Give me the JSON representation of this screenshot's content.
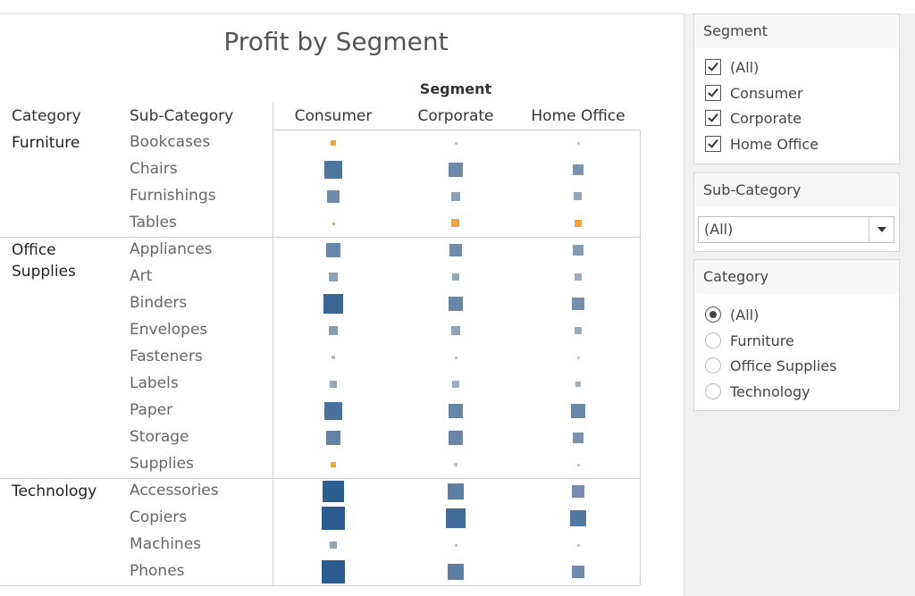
{
  "chart_data": {
    "type": "square-heatmap",
    "title": "Profit by Segment",
    "column_header": "Segment",
    "row_headers": [
      "Category",
      "Sub-Category"
    ],
    "columns": [
      "Consumer",
      "Corporate",
      "Home Office"
    ],
    "positive_color": "#2b5c8f",
    "neutral_color": "#cfcfcf",
    "negative_color": "#f0a33c",
    "groups": [
      {
        "category": "Furniture",
        "rows": [
          {
            "name": "Bookcases",
            "values": [
              -1800,
              300,
              100
            ]
          },
          {
            "name": "Chairs",
            "values": [
              14000,
              8500,
              6000
            ]
          },
          {
            "name": "Furnishings",
            "values": [
              7900,
              3800,
              3000
            ]
          },
          {
            "name": "Tables",
            "values": [
              -100,
              -3000,
              -2900
            ]
          }
        ]
      },
      {
        "category": "Office Supplies",
        "rows": [
          {
            "name": "Appliances",
            "values": [
              9000,
              8000,
              4500
            ]
          },
          {
            "name": "Art",
            "values": [
              3600,
              2800,
              2000
            ]
          },
          {
            "name": "Binders",
            "values": [
              19000,
              9000,
              7000
            ]
          },
          {
            "name": "Envelopes",
            "values": [
              4400,
              3700,
              2400
            ]
          },
          {
            "name": "Fasteners",
            "values": [
              400,
              300,
              250
            ]
          },
          {
            "name": "Labels",
            "values": [
              2800,
              1900,
              1800
            ]
          },
          {
            "name": "Paper",
            "values": [
              15000,
              9000,
              9000
            ]
          },
          {
            "name": "Storage",
            "values": [
              10000,
              9000,
              6000
            ]
          },
          {
            "name": "Supplies",
            "values": [
              -1500,
              500,
              300
            ]
          }
        ]
      },
      {
        "category": "Technology",
        "rows": [
          {
            "name": "Accessories",
            "values": [
              22000,
              11000,
              7000
            ]
          },
          {
            "name": "Copiers",
            "values": [
              25000,
              17000,
              13000
            ]
          },
          {
            "name": "Machines",
            "values": [
              2900,
              300,
              200
            ]
          },
          {
            "name": "Phones",
            "values": [
              24000,
              11000,
              8000
            ]
          }
        ]
      }
    ]
  },
  "filters": {
    "segment": {
      "title": "Segment",
      "options": [
        "(All)",
        "Consumer",
        "Corporate",
        "Home Office"
      ],
      "checked": [
        true,
        true,
        true,
        true
      ]
    },
    "sub_category": {
      "title": "Sub-Category",
      "value": "(All)"
    },
    "category": {
      "title": "Category",
      "options": [
        "(All)",
        "Furniture",
        "Office Supplies",
        "Technology"
      ],
      "selected": 0
    }
  }
}
